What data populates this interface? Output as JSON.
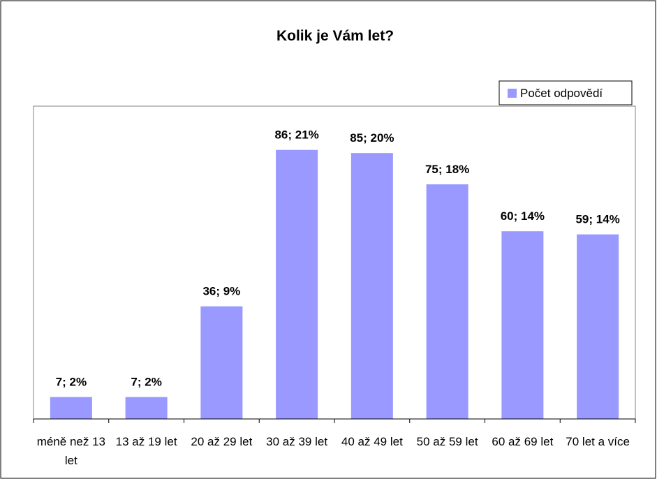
{
  "chart_data": {
    "type": "bar",
    "title": "Kolik je Vám let?",
    "categories": [
      "méně než 13 let",
      "13 až 19 let",
      "20 až 29 let",
      "30 až 39 let",
      "40 až 49 let",
      "50 až 59 let",
      "60 až 69 let",
      "70 let a více"
    ],
    "series": [
      {
        "name": "Počet odpovědí",
        "color": "#9999ff",
        "values": [
          7,
          7,
          36,
          86,
          85,
          75,
          60,
          59
        ],
        "value_labels": [
          "7; 2%",
          "7; 2%",
          "36; 9%",
          "86; 21%",
          "85; 20%",
          "75; 18%",
          "60; 14%",
          "59; 14%"
        ]
      }
    ],
    "ylim": [
      0,
      100
    ],
    "legend": "top-right"
  }
}
